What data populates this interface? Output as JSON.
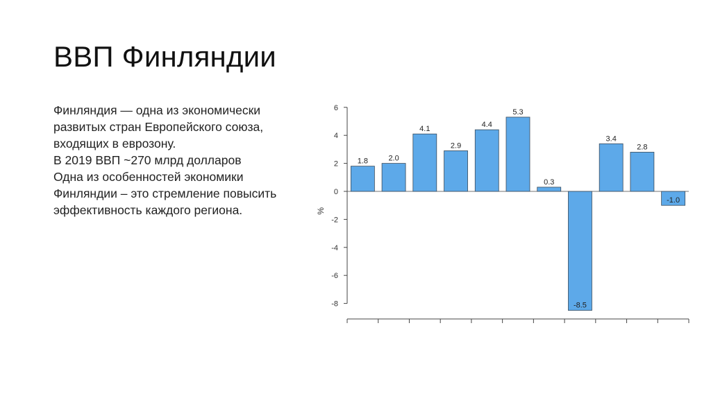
{
  "slide": {
    "title": "ВВП Финляндии",
    "paragraph_lines": [
      "Финляндия — одна из экономически",
      "развитых стран Европейского союза,",
      "входящих в еврозону.",
      "В 2019 ВВП ~270 млрд долларов",
      "Одна из особенностей экономики",
      "Финляндии – это стремление повысить",
      "эффективность каждого региона."
    ]
  },
  "chart_data": {
    "type": "bar",
    "ylabel": "%",
    "ylim": [
      -8,
      6
    ],
    "yticks": [
      6,
      4,
      2,
      0,
      -2,
      -4,
      -6,
      -8
    ],
    "values": [
      1.8,
      2.0,
      4.1,
      2.9,
      4.4,
      5.3,
      0.3,
      -8.5,
      3.4,
      2.8,
      -1.0
    ],
    "value_labels": [
      "1.8",
      "2.0",
      "4.1",
      "2.9",
      "4.4",
      "5.3",
      "0.3",
      "-8.5",
      "3.4",
      "2.8",
      "-1.0"
    ],
    "bar_color": "#5DA9E9",
    "grid": false
  }
}
